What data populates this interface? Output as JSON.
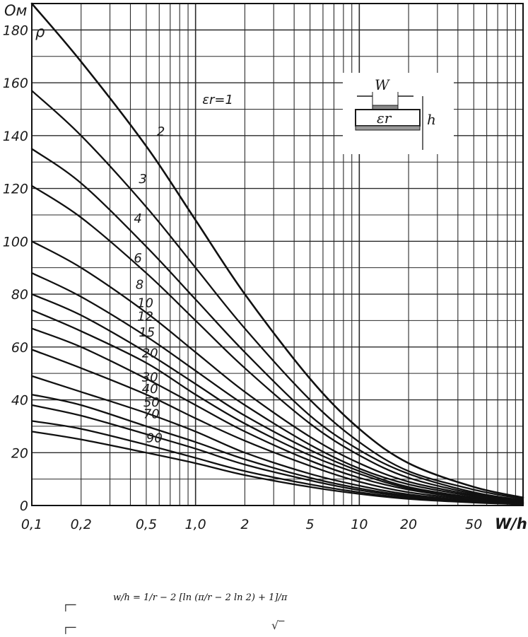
{
  "chart_data": {
    "type": "line",
    "y_unit_label": "Ом",
    "y_symbol": "ρ",
    "xlabel": "W/h",
    "x_scale": "log",
    "xlim": [
      0.1,
      100
    ],
    "ylim": [
      0,
      190
    ],
    "grid": true,
    "y_ticks": [
      "0",
      "20",
      "40",
      "60",
      "80",
      "100",
      "120",
      "140",
      "160",
      "180"
    ],
    "x_ticks": [
      {
        "v": 0.1,
        "label": "0,1"
      },
      {
        "v": 0.2,
        "label": "0,2"
      },
      {
        "v": 0.5,
        "label": "0,5"
      },
      {
        "v": 1.0,
        "label": "1,0"
      },
      {
        "v": 2,
        "label": "2"
      },
      {
        "v": 5,
        "label": "5"
      },
      {
        "v": 10,
        "label": "10"
      },
      {
        "v": 20,
        "label": "20"
      },
      {
        "v": 50,
        "label": "50"
      }
    ],
    "series": [
      {
        "name": "εr=1",
        "label": "εr=1",
        "x": [
          0.1,
          0.2,
          0.5,
          1,
          2,
          5,
          10,
          20,
          50,
          100
        ],
        "y": [
          190,
          168,
          136,
          108,
          80,
          48,
          29,
          16,
          7,
          3
        ]
      },
      {
        "name": "2",
        "label": "2",
        "x": [
          0.1,
          0.2,
          0.5,
          1,
          2,
          5,
          10,
          20,
          50,
          100
        ],
        "y": [
          157,
          140,
          113,
          90,
          67,
          40,
          24,
          13,
          6,
          2.5
        ]
      },
      {
        "name": "3",
        "label": "3",
        "x": [
          0.1,
          0.2,
          0.5,
          1,
          2,
          5,
          10,
          20,
          50,
          100
        ],
        "y": [
          135,
          122,
          98,
          78,
          58,
          34,
          21,
          12,
          5,
          2
        ]
      },
      {
        "name": "4",
        "label": "4",
        "x": [
          0.1,
          0.2,
          0.5,
          1,
          2,
          5,
          10,
          20,
          50,
          100
        ],
        "y": [
          121,
          109,
          88,
          70,
          52,
          31,
          19,
          10.5,
          4.5,
          1.8
        ]
      },
      {
        "name": "6",
        "label": "6",
        "x": [
          0.1,
          0.2,
          0.5,
          1,
          2,
          5,
          10,
          20,
          50,
          100
        ],
        "y": [
          100,
          90,
          73,
          58,
          43,
          26,
          16,
          9,
          4,
          1.5
        ]
      },
      {
        "name": "8",
        "label": "8",
        "x": [
          0.1,
          0.2,
          0.5,
          1,
          2,
          5,
          10,
          20,
          50,
          100
        ],
        "y": [
          88,
          79,
          64,
          51,
          38,
          23,
          14,
          8,
          3.5,
          1.3
        ]
      },
      {
        "name": "10",
        "label": "10",
        "x": [
          0.1,
          0.2,
          0.5,
          1,
          2,
          5,
          10,
          20,
          50,
          100
        ],
        "y": [
          80,
          72,
          58,
          46,
          34,
          21,
          13,
          7,
          3,
          1.2
        ]
      },
      {
        "name": "12",
        "label": "12",
        "x": [
          0.1,
          0.2,
          0.5,
          1,
          2,
          5,
          10,
          20,
          50,
          100
        ],
        "y": [
          74,
          66,
          54,
          42,
          31,
          19,
          12,
          6.5,
          2.8,
          1.1
        ]
      },
      {
        "name": "15",
        "label": "15",
        "x": [
          0.1,
          0.2,
          0.5,
          1,
          2,
          5,
          10,
          20,
          50,
          100
        ],
        "y": [
          67,
          60,
          48,
          38,
          28,
          17,
          10.5,
          6,
          2.5,
          1
        ]
      },
      {
        "name": "20",
        "label": "20",
        "x": [
          0.1,
          0.2,
          0.5,
          1,
          2,
          5,
          10,
          20,
          50,
          100
        ],
        "y": [
          59,
          52,
          42,
          33,
          24.5,
          15,
          9,
          5,
          2.2,
          0.9
        ]
      },
      {
        "name": "30",
        "label": "30",
        "x": [
          0.1,
          0.2,
          0.5,
          1,
          2,
          5,
          10,
          20,
          50,
          100
        ],
        "y": [
          49,
          43,
          35,
          28,
          20,
          12,
          7.5,
          4.2,
          1.8,
          0.7
        ]
      },
      {
        "name": "40",
        "label": "40",
        "x": [
          0.1,
          0.2,
          0.5,
          1,
          2,
          5,
          10,
          20,
          50,
          100
        ],
        "y": [
          42,
          38,
          30,
          24,
          17.5,
          10.5,
          6.5,
          3.7,
          1.6,
          0.6
        ]
      },
      {
        "name": "50",
        "label": "50",
        "x": [
          0.1,
          0.2,
          0.5,
          1,
          2,
          5,
          10,
          20,
          50,
          100
        ],
        "y": [
          38,
          34,
          27,
          21.5,
          15.5,
          9.5,
          5.8,
          3.3,
          1.4,
          0.55
        ]
      },
      {
        "name": "70",
        "label": "70",
        "x": [
          0.1,
          0.2,
          0.5,
          1,
          2,
          5,
          10,
          20,
          50,
          100
        ],
        "y": [
          32,
          29,
          23,
          18,
          13,
          8,
          5,
          2.8,
          1.2,
          0.5
        ]
      },
      {
        "name": "90",
        "label": "90",
        "x": [
          0.1,
          0.2,
          0.5,
          1,
          2,
          5,
          10,
          20,
          50,
          100
        ],
        "y": [
          28,
          25,
          20,
          16,
          11.5,
          7,
          4.4,
          2.5,
          1.1,
          0.45
        ]
      }
    ],
    "curve_label_pos": [
      {
        "x": 1.1,
        "y": 152
      },
      {
        "x": 0.58,
        "y": 140
      },
      {
        "x": 0.45,
        "y": 122
      },
      {
        "x": 0.42,
        "y": 107
      },
      {
        "x": 0.42,
        "y": 92
      },
      {
        "x": 0.43,
        "y": 82
      },
      {
        "x": 0.44,
        "y": 75
      },
      {
        "x": 0.44,
        "y": 70
      },
      {
        "x": 0.45,
        "y": 64
      },
      {
        "x": 0.47,
        "y": 56
      },
      {
        "x": 0.47,
        "y": 47
      },
      {
        "x": 0.47,
        "y": 42.5
      },
      {
        "x": 0.48,
        "y": 37.5
      },
      {
        "x": 0.48,
        "y": 33
      },
      {
        "x": 0.5,
        "y": 24
      }
    ],
    "inset": {
      "w_label": "W",
      "eps_label": "εr",
      "h_label": "h"
    }
  },
  "formula": {
    "text": "w/h = 1/r − 2 [ln (π/r − 2 ln 2) + 1]/π"
  }
}
